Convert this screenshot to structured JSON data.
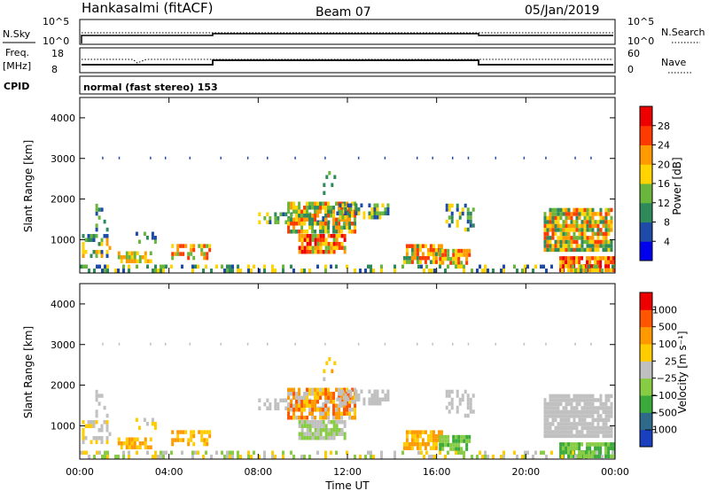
{
  "header": {
    "station": "Hankasalmi (fitACF)",
    "beam": "Beam 07",
    "date": "05/Jan/2019"
  },
  "top_panels": {
    "nsky_label": "N.Sky",
    "nsky_ticks": [
      "10^5",
      "10^0"
    ],
    "nsearch_label": "N.Search",
    "nsearch_ticks": [
      "10^5",
      "10^0"
    ],
    "freq_label": "Freq.",
    "freq_unit": "[MHz]",
    "freq_ticks": [
      "18",
      "8"
    ],
    "nave_label": "Nave",
    "nave_ticks": [
      "60",
      "0"
    ],
    "cpid_label": "CPID",
    "cpid_value": "normal (fast stereo) 153"
  },
  "chart_data": [
    {
      "type": "heatmap",
      "name": "power",
      "ylabel": "Slant Range [km]",
      "yticks": [
        "4000",
        "3000",
        "2000",
        "1000"
      ],
      "ylim": [
        180,
        4500
      ],
      "xlim": [
        0,
        24
      ],
      "colorbar_label": "Power [dB]",
      "colorbar_ticks": [
        "28",
        "24",
        "20",
        "16",
        "12",
        "8",
        "4"
      ],
      "colors": [
        "#0000ee",
        "#1e4aa8",
        "#2e8a5a",
        "#6ab63c",
        "#ffd400",
        "#ff9a00",
        "#ff3a00",
        "#ee0000"
      ]
    },
    {
      "type": "heatmap",
      "name": "velocity",
      "ylabel": "Slant Range [km]",
      "yticks": [
        "4000",
        "3000",
        "2000",
        "1000"
      ],
      "ylim": [
        180,
        4500
      ],
      "xlim": [
        0,
        24
      ],
      "xlabel": "Time UT",
      "xticks": [
        "00:00",
        "04:00",
        "08:00",
        "12:00",
        "16:00",
        "20:00",
        "00:00"
      ],
      "colorbar_label": "Velocity [m s⁻¹]",
      "colorbar_ticks": [
        "1000",
        "500",
        "100",
        "25",
        "−25",
        "−100",
        "−500",
        "−1000"
      ],
      "colors": [
        "#1a3fbf",
        "#2f6a8a",
        "#3aaa3a",
        "#88cc44",
        "#c0c0c0",
        "#ffcc00",
        "#ff9900",
        "#ff5500",
        "#ee0000"
      ]
    }
  ]
}
